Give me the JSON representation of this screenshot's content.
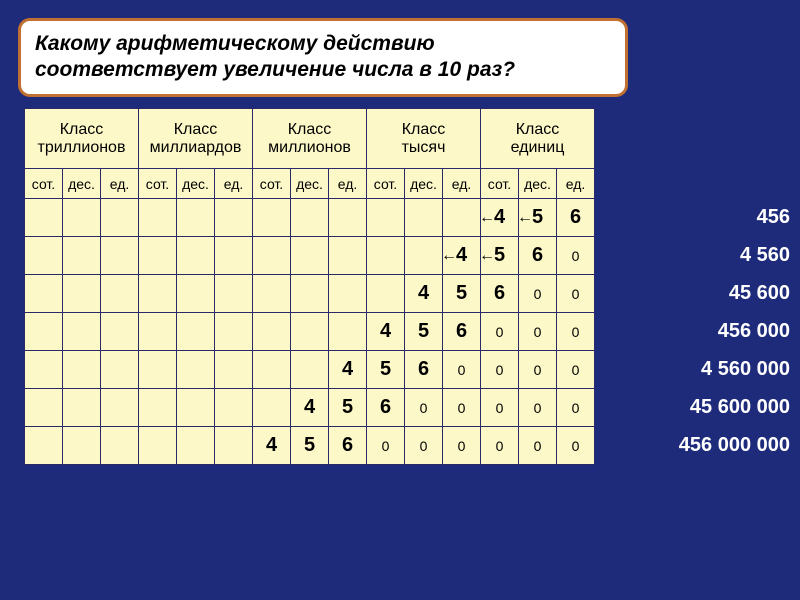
{
  "question": "Какому арифметическому действию соответствует увеличение числа в 10 раз?",
  "class_headers": [
    "Класс триллионов",
    "Класс миллиардов",
    "Класс миллионов",
    "Класс тысяч",
    "Класс единиц"
  ],
  "sub_headers": [
    "сот.",
    "дес.",
    "ед."
  ],
  "rows": [
    {
      "offset": 12,
      "digits": [
        "4",
        "5",
        "6"
      ],
      "arrows": [
        0,
        1
      ],
      "zeros": 0
    },
    {
      "offset": 11,
      "digits": [
        "4",
        "5",
        "6"
      ],
      "arrows": [
        0,
        1
      ],
      "zeros": 1
    },
    {
      "offset": 10,
      "digits": [
        "4",
        "5",
        "6"
      ],
      "arrows": [],
      "zeros": 2
    },
    {
      "offset": 9,
      "digits": [
        "4",
        "5",
        "6"
      ],
      "arrows": [],
      "zeros": 3
    },
    {
      "offset": 8,
      "digits": [
        "4",
        "5",
        "6"
      ],
      "arrows": [],
      "zeros": 4
    },
    {
      "offset": 7,
      "digits": [
        "4",
        "5",
        "6"
      ],
      "arrows": [],
      "zeros": 5
    },
    {
      "offset": 6,
      "digits": [
        "4",
        "5",
        "6"
      ],
      "arrows": [],
      "zeros": 6
    }
  ],
  "side_numbers": [
    "456",
    "4 560",
    "45 600",
    "456 000",
    "4 560 000",
    "45 600 000",
    "456 000  000"
  ],
  "colors": {
    "page_bg": "#1e2a7a",
    "box_bg": "#ffffff",
    "box_border": "#c07030",
    "table_bg": "#fcf8c8",
    "table_border": "#2a2a6a",
    "side_text": "#ffffff"
  }
}
